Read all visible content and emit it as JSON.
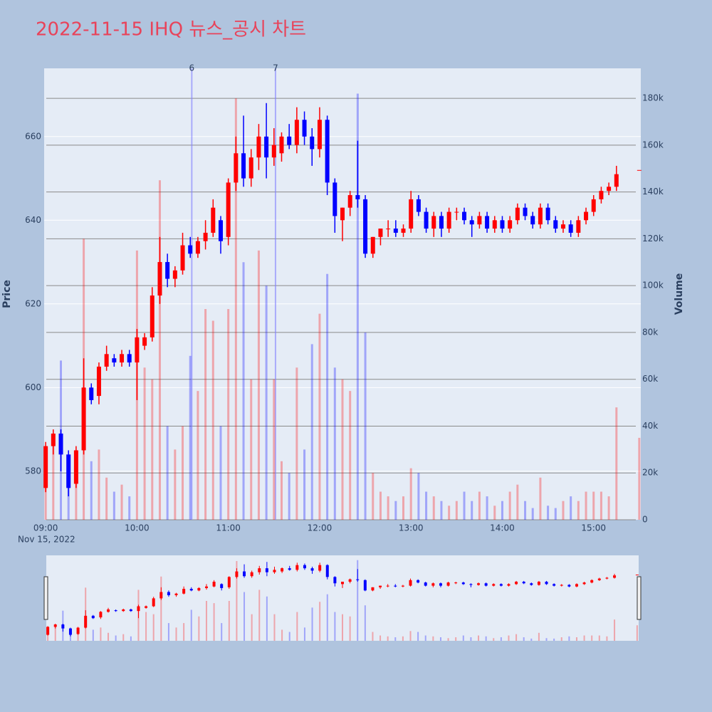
{
  "chart_data": {
    "type": "candlestick",
    "title": "2022-11-15 IHQ 뉴스_공시 차트",
    "y_label": "Price",
    "y2_label": "Volume",
    "increasing_color": "#ff0000",
    "decreasing_color": "#0000ff",
    "x": [
      "09:00",
      "09:05",
      "09:10",
      "09:15",
      "09:20",
      "09:25",
      "09:30",
      "09:35",
      "09:40",
      "09:45",
      "09:50",
      "09:55",
      "10:00",
      "10:05",
      "10:10",
      "10:15",
      "10:20",
      "10:25",
      "10:30",
      "10:35",
      "10:40",
      "10:45",
      "10:50",
      "10:55",
      "11:00",
      "11:05",
      "11:10",
      "11:15",
      "11:20",
      "11:25",
      "11:30",
      "11:35",
      "11:40",
      "11:45",
      "11:50",
      "11:55",
      "12:00",
      "12:05",
      "12:10",
      "12:15",
      "12:20",
      "12:25",
      "12:30",
      "12:35",
      "12:40",
      "12:45",
      "12:50",
      "12:55",
      "13:00",
      "13:05",
      "13:10",
      "13:15",
      "13:20",
      "13:25",
      "13:30",
      "13:35",
      "13:40",
      "13:45",
      "13:50",
      "13:55",
      "14:00",
      "14:05",
      "14:10",
      "14:15",
      "14:20",
      "14:25",
      "14:30",
      "14:35",
      "14:40",
      "14:45",
      "14:50",
      "14:55",
      "15:00",
      "15:05",
      "15:10",
      "15:15",
      "15:30"
    ],
    "open": [
      576,
      586,
      589,
      584,
      577,
      585,
      600,
      598,
      605,
      607,
      606,
      608,
      606,
      610,
      612,
      622,
      630,
      626,
      628,
      634,
      632,
      635,
      637,
      640,
      636,
      649,
      656,
      650,
      655,
      660,
      655,
      656,
      660,
      658,
      664,
      660,
      657,
      664,
      649,
      640,
      643,
      646,
      645,
      632,
      636,
      638,
      638,
      637,
      638,
      645,
      642,
      638,
      641,
      638,
      642,
      642,
      640,
      639,
      641,
      638,
      640,
      638,
      640,
      643,
      641,
      639,
      643,
      640,
      638,
      639,
      637,
      640,
      642,
      645,
      647,
      648,
      652
    ],
    "high": [
      587,
      590,
      590,
      585,
      586,
      607,
      601,
      606,
      610,
      608,
      609,
      609,
      614,
      613,
      624,
      636,
      632,
      629,
      637,
      636,
      636,
      640,
      645,
      641,
      650,
      660,
      665,
      657,
      663,
      668,
      662,
      661,
      663,
      667,
      666,
      662,
      667,
      665,
      650,
      643,
      647,
      659,
      646,
      636,
      638,
      640,
      640,
      639,
      647,
      646,
      643,
      642,
      642,
      643,
      643,
      643,
      641,
      642,
      642,
      641,
      641,
      641,
      644,
      644,
      642,
      644,
      644,
      641,
      640,
      640,
      641,
      643,
      646,
      648,
      649,
      653,
      652
    ],
    "low": [
      575,
      584,
      580,
      574,
      576,
      584,
      596,
      596,
      604,
      605,
      605,
      605,
      597,
      609,
      611,
      620,
      624,
      624,
      627,
      631,
      631,
      633,
      636,
      632,
      634,
      647,
      648,
      648,
      652,
      650,
      653,
      654,
      657,
      656,
      658,
      653,
      655,
      646,
      637,
      635,
      641,
      643,
      631,
      631,
      634,
      636,
      636,
      636,
      637,
      641,
      637,
      636,
      636,
      637,
      640,
      639,
      636,
      638,
      637,
      637,
      637,
      637,
      639,
      640,
      638,
      638,
      639,
      637,
      637,
      636,
      636,
      639,
      641,
      644,
      646,
      647,
      652
    ],
    "close": [
      586,
      589,
      584,
      576,
      585,
      600,
      597,
      605,
      608,
      606,
      608,
      606,
      612,
      612,
      622,
      630,
      626,
      628,
      634,
      632,
      635,
      637,
      643,
      635,
      649,
      656,
      650,
      655,
      660,
      655,
      658,
      660,
      658,
      664,
      660,
      657,
      664,
      649,
      641,
      643,
      646,
      645,
      632,
      636,
      638,
      638,
      637,
      638,
      645,
      642,
      638,
      641,
      638,
      642,
      642,
      640,
      639,
      641,
      638,
      640,
      638,
      640,
      643,
      641,
      639,
      643,
      640,
      638,
      639,
      637,
      640,
      642,
      645,
      647,
      648,
      651,
      652
    ],
    "volume": [
      25000,
      35000,
      68000,
      15000,
      20000,
      120000,
      25000,
      30000,
      18000,
      12000,
      15000,
      10000,
      115000,
      65000,
      60000,
      145000,
      40000,
      30000,
      40000,
      70000,
      55000,
      90000,
      85000,
      40000,
      90000,
      180000,
      110000,
      60000,
      115000,
      100000,
      60000,
      25000,
      20000,
      65000,
      30000,
      75000,
      88000,
      105000,
      65000,
      60000,
      55000,
      182000,
      80000,
      20000,
      12000,
      10000,
      8000,
      10000,
      22000,
      20000,
      12000,
      10000,
      8000,
      6000,
      8000,
      12000,
      8000,
      12000,
      10000,
      6000,
      8000,
      12000,
      15000,
      8000,
      5000,
      18000,
      6000,
      5000,
      8000,
      10000,
      8000,
      12000,
      12000,
      12000,
      10000,
      48000,
      35000
    ],
    "events": [
      {
        "x": "10:36",
        "label": "6"
      },
      {
        "x": "11:31",
        "label": "7"
      }
    ],
    "xlim": [
      "08:59",
      "15:31"
    ],
    "xticks": [
      "09:00",
      "10:00",
      "11:00",
      "12:00",
      "13:00",
      "14:00",
      "15:00"
    ],
    "x_date_label": "Nov 15, 2022",
    "ylim": [
      568.4,
      676.3
    ],
    "yticks": [
      580,
      600,
      620,
      640,
      660
    ],
    "y2lim": [
      0,
      192800
    ],
    "y2ticks": [
      0,
      {
        "value": 20000,
        "label": "20k"
      },
      {
        "value": 40000,
        "label": "40k"
      },
      {
        "value": 60000,
        "label": "60k"
      },
      {
        "value": 80000,
        "label": "80k"
      },
      {
        "value": 100000,
        "label": "100k"
      },
      {
        "value": 120000,
        "label": "120k"
      },
      {
        "value": 140000,
        "label": "140k"
      },
      {
        "value": 160000,
        "label": "160k"
      },
      {
        "value": 180000,
        "label": "180k"
      }
    ],
    "grid": true
  }
}
